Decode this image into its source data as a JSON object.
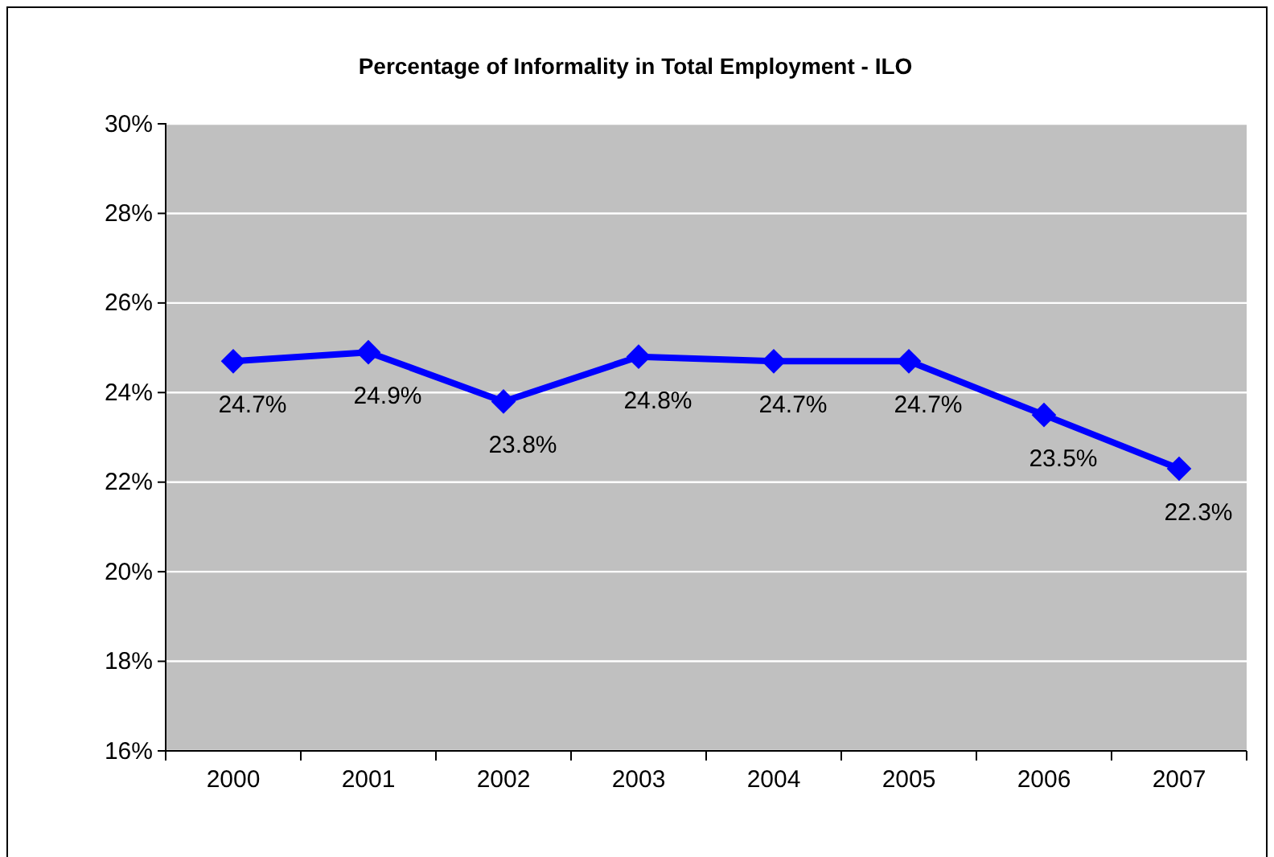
{
  "chart_data": {
    "type": "line",
    "title": "Percentage of Informality in Total Employment - ILO",
    "categories": [
      "2000",
      "2001",
      "2002",
      "2003",
      "2004",
      "2005",
      "2006",
      "2007"
    ],
    "series": [
      {
        "color": "#0000ff",
        "values": [
          24.7,
          24.9,
          23.8,
          24.8,
          24.7,
          24.7,
          23.5,
          22.3
        ]
      }
    ],
    "ylim": [
      16,
      30
    ],
    "yticks": [
      {
        "value": 16,
        "label": "16%"
      },
      {
        "value": 18,
        "label": "18%"
      },
      {
        "value": 20,
        "label": "20%"
      },
      {
        "value": 22,
        "label": "22%"
      },
      {
        "value": 24,
        "label": "24%"
      },
      {
        "value": 26,
        "label": "26%"
      },
      {
        "value": 28,
        "label": "28%"
      },
      {
        "value": 30,
        "label": "30%"
      }
    ],
    "value_labels": [
      "24.7%",
      "24.9%",
      "23.8%",
      "24.8%",
      "24.7%",
      "24.7%",
      "23.5%",
      "22.3%"
    ],
    "grid": "y",
    "marker": "diamond",
    "line_style": "solid"
  }
}
